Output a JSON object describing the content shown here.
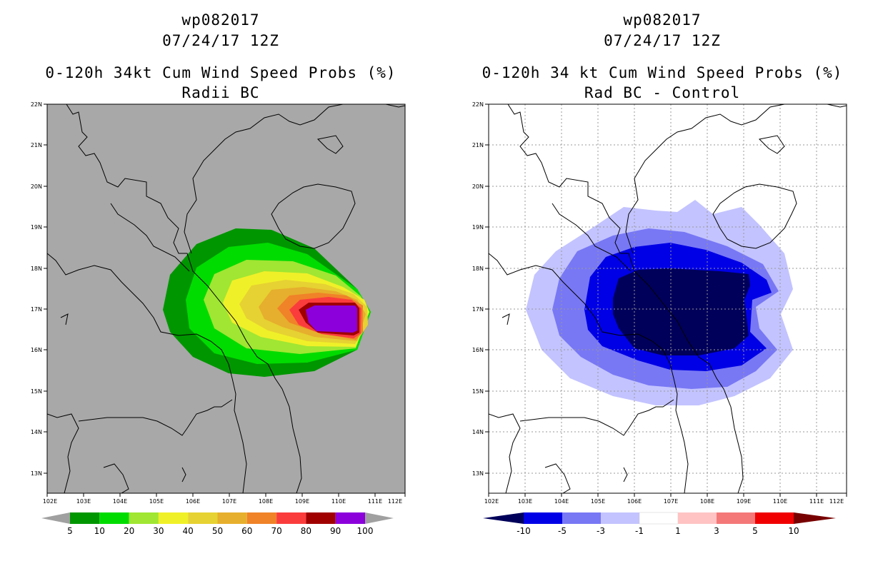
{
  "left": {
    "title1": "wp082017",
    "title2": "07/24/17 12Z",
    "title3": "0-120h 34kt Cum Wind Speed Probs (%)",
    "title4": "Radii BC",
    "lat_labels": [
      "22N",
      "21N",
      "20N",
      "19N",
      "18N",
      "17N",
      "16N",
      "15N",
      "14N",
      "13N"
    ],
    "lon_labels": [
      "102E",
      "103E",
      "104E",
      "105E",
      "106E",
      "107E",
      "108E",
      "109E",
      "110E",
      "111E",
      "112E"
    ],
    "colorbar_labels": [
      "5",
      "10",
      "20",
      "30",
      "40",
      "50",
      "60",
      "70",
      "80",
      "90",
      "100"
    ],
    "colorbar_colors": [
      "#009600",
      "#00dc00",
      "#a0e632",
      "#f0f028",
      "#e6d232",
      "#e6af2d",
      "#f08228",
      "#fa3c3c",
      "#a00000",
      "#8c00dc"
    ],
    "colorbar_under": "#a0a0a0",
    "colorbar_over": "#a0a0a0"
  },
  "right": {
    "title1": "wp082017",
    "title2": "07/24/17 12Z",
    "title3": "0-120h 34 kt Cum Wind Speed Probs (%)",
    "title4": "Rad BC - Control",
    "lat_labels": [
      "22N",
      "21N",
      "20N",
      "19N",
      "18N",
      "17N",
      "16N",
      "15N",
      "14N",
      "13N"
    ],
    "lon_labels": [
      "102E",
      "103E",
      "104E",
      "105E",
      "106E",
      "107E",
      "108E",
      "109E",
      "110E",
      "111E",
      "112E"
    ],
    "colorbar_labels": [
      "-10",
      "-5",
      "-3",
      "-1",
      "1",
      "3",
      "5",
      "10"
    ],
    "colorbar_colors": [
      "#0000e6",
      "#7878f5",
      "#c3c3ff",
      "#ffffff",
      "#ffc3c3",
      "#f57878",
      "#f00000"
    ],
    "colorbar_under": "#00005a",
    "colorbar_over": "#780000"
  }
}
